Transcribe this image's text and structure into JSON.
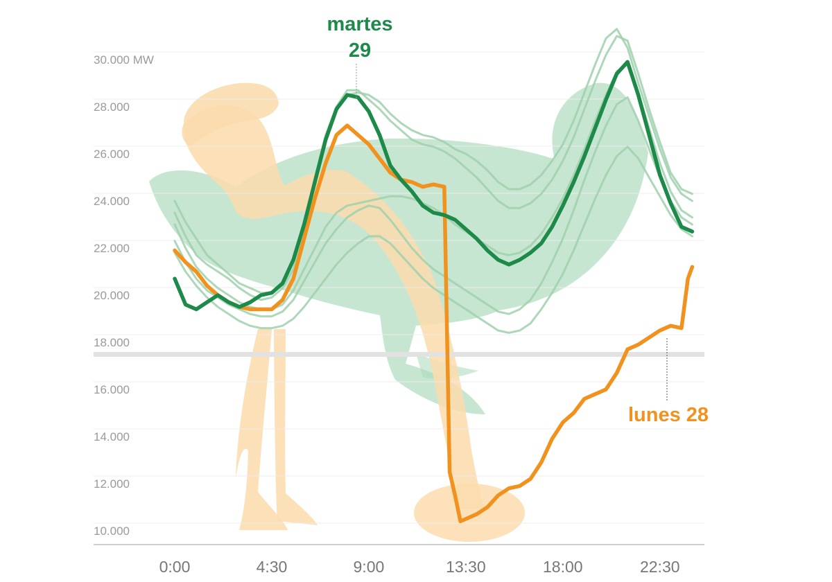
{
  "chart_data": {
    "type": "line",
    "title": "",
    "xlabel": "",
    "ylabel": "",
    "y_unit": "MW",
    "xlim": [
      0,
      24.5
    ],
    "ylim": [
      9500,
      30500
    ],
    "y_ticks": [
      10000,
      12000,
      14000,
      16000,
      18000,
      20000,
      22000,
      24000,
      26000,
      28000,
      30000
    ],
    "y_tick_labels": [
      "10.000",
      "12.000",
      "14.000",
      "16.000",
      "18.000",
      "20.000",
      "22.000",
      "24.000",
      "26.000",
      "28.000",
      "30.000 MW"
    ],
    "x_ticks": [
      0,
      4.5,
      9,
      13.5,
      18,
      22.5
    ],
    "x_tick_labels": [
      "0:00",
      "4:30",
      "9:00",
      "13:30",
      "18:00",
      "22:30"
    ],
    "grid": "horizontal",
    "colors": {
      "martes": "#1e8a4a",
      "lunes": "#f0921d",
      "other_days": "#9fd0ad",
      "ostrich_green": "#a9d8b9",
      "ostrich_orange": "#fbdcae",
      "axis_break": "#e2e2e2"
    },
    "annotations": {
      "martes_line1": "martes",
      "martes_line2": "29",
      "lunes": "lunes 28"
    },
    "series": [
      {
        "key": "martes",
        "x": [
          0,
          0.5,
          1,
          1.5,
          2,
          2.5,
          3,
          3.5,
          4,
          4.5,
          5,
          5.5,
          6,
          6.5,
          7,
          7.5,
          8,
          8.5,
          9,
          9.5,
          10,
          10.5,
          11,
          11.5,
          12,
          12.5,
          13,
          13.5,
          14,
          14.5,
          15,
          15.5,
          16,
          16.5,
          17,
          17.5,
          18,
          18.5,
          19,
          19.5,
          20,
          20.5,
          21,
          21.5,
          22,
          22.5,
          23,
          23.5,
          24
        ],
        "values": [
          20700,
          19600,
          19400,
          19700,
          20000,
          19700,
          19500,
          19700,
          20000,
          20100,
          20500,
          21500,
          23000,
          24800,
          26600,
          27900,
          28500,
          28400,
          27800,
          26800,
          25500,
          24900,
          24400,
          23800,
          23500,
          23400,
          23200,
          22800,
          22400,
          21900,
          21500,
          21300,
          21500,
          21800,
          22200,
          22900,
          23800,
          24800,
          25900,
          27100,
          28300,
          29400,
          29900,
          28500,
          26800,
          25100,
          23900,
          22900,
          22700
        ]
      },
      {
        "key": "lunes",
        "x": [
          0,
          0.5,
          1,
          1.5,
          2,
          2.5,
          3,
          3.5,
          4,
          4.5,
          5,
          5.5,
          6,
          6.5,
          7,
          7.5,
          8,
          8.5,
          9,
          9.5,
          10,
          10.5,
          11,
          11.5,
          12,
          12.5,
          12.75,
          13,
          13.25,
          13.5,
          14,
          14.5,
          15,
          15.5,
          16,
          16.5,
          17,
          17.5,
          18,
          18.5,
          19,
          19.5,
          20,
          20.5,
          21,
          21.5,
          22,
          22.5,
          23,
          23.5,
          23.8,
          24
        ],
        "values": [
          21900,
          21400,
          21000,
          20400,
          20000,
          19700,
          19500,
          19400,
          19400,
          19400,
          19800,
          20700,
          22400,
          24100,
          25600,
          26800,
          27200,
          26800,
          26400,
          25800,
          25200,
          24900,
          24800,
          24600,
          24700,
          24600,
          12500,
          11500,
          10400,
          10500,
          10700,
          11000,
          11500,
          11800,
          11900,
          12200,
          12900,
          13900,
          14600,
          15000,
          15600,
          15800,
          16000,
          16700,
          17700,
          17900,
          18200,
          18500,
          18700,
          18600,
          20700,
          21200
        ]
      },
      {
        "key": "other_day_1",
        "x": [
          0,
          0.5,
          1,
          1.5,
          2,
          2.5,
          3,
          3.5,
          4,
          4.5,
          5,
          5.5,
          6,
          6.5,
          7,
          7.5,
          8,
          8.5,
          9,
          9.5,
          10,
          10.5,
          11,
          11.5,
          12,
          12.5,
          13,
          13.5,
          14,
          14.5,
          15,
          15.5,
          16,
          16.5,
          17,
          17.5,
          18,
          18.5,
          19,
          19.5,
          20,
          20.5,
          21,
          21.5,
          22,
          22.5,
          23,
          23.5,
          24
        ],
        "values": [
          23500,
          22500,
          21700,
          21300,
          21000,
          20700,
          20300,
          20000,
          19800,
          19900,
          20300,
          21100,
          22700,
          24700,
          26600,
          27900,
          28500,
          28600,
          28500,
          28200,
          27700,
          27300,
          27000,
          26800,
          26700,
          26500,
          26200,
          26000,
          25700,
          25300,
          24800,
          24500,
          24500,
          24700,
          25100,
          25700,
          26400,
          27400,
          28600,
          29800,
          30900,
          31300,
          30500,
          29000,
          27600,
          26200,
          25000,
          24300,
          24000
        ]
      },
      {
        "key": "other_day_2",
        "x": [
          0,
          0.5,
          1,
          1.5,
          2,
          2.5,
          3,
          3.5,
          4,
          4.5,
          5,
          5.5,
          6,
          6.5,
          7,
          7.5,
          8,
          8.5,
          9,
          9.5,
          10,
          10.5,
          11,
          11.5,
          12,
          12.5,
          13,
          13.5,
          14,
          14.5,
          15,
          15.5,
          16,
          16.5,
          17,
          17.5,
          18,
          18.5,
          19,
          19.5,
          20,
          20.5,
          21,
          21.5,
          22,
          22.5,
          23,
          23.5,
          24
        ],
        "values": [
          24000,
          23100,
          22400,
          21700,
          21300,
          20900,
          20500,
          20300,
          20100,
          20100,
          20500,
          21400,
          23000,
          25000,
          26800,
          28000,
          28700,
          28700,
          28300,
          27900,
          27400,
          27000,
          26600,
          26400,
          26300,
          26100,
          25800,
          25400,
          25000,
          24500,
          24000,
          23700,
          23700,
          23900,
          24300,
          24900,
          25700,
          26700,
          27900,
          29100,
          30200,
          31000,
          30800,
          29400,
          27900,
          26500,
          25200,
          24500,
          24300
        ]
      },
      {
        "key": "other_day_3",
        "x": [
          0,
          0.5,
          1,
          1.5,
          2,
          2.5,
          3,
          3.5,
          4,
          4.5,
          5,
          5.5,
          6,
          6.5,
          7,
          7.5,
          8,
          8.5,
          9,
          9.5,
          10,
          10.5,
          11,
          11.5,
          12,
          12.5,
          13,
          13.5,
          14,
          14.5,
          15,
          15.5,
          16,
          16.5,
          17,
          17.5,
          18,
          18.5,
          19,
          19.5,
          20,
          20.5,
          21,
          21.5,
          22,
          22.5,
          23,
          23.5,
          24
        ],
        "values": [
          23000,
          22000,
          21200,
          20700,
          20300,
          20000,
          19700,
          19500,
          19400,
          19400,
          19600,
          20200,
          21100,
          22000,
          22900,
          23500,
          23800,
          23900,
          24000,
          24100,
          24200,
          24200,
          24100,
          23900,
          23700,
          23400,
          23000,
          22700,
          22400,
          22100,
          21800,
          21700,
          21800,
          22100,
          22600,
          23300,
          24100,
          25100,
          26200,
          27400,
          28500,
          29500,
          29800,
          28600,
          27100,
          25600,
          24400,
          23600,
          23300
        ]
      },
      {
        "key": "other_day_4",
        "x": [
          0,
          0.5,
          1,
          1.5,
          2,
          2.5,
          3,
          3.5,
          4,
          4.5,
          5,
          5.5,
          6,
          6.5,
          7,
          7.5,
          8,
          8.5,
          9,
          9.5,
          10,
          10.5,
          11,
          11.5,
          12,
          12.5,
          13,
          13.5,
          14,
          14.5,
          15,
          15.5,
          16,
          16.5,
          17,
          17.5,
          18,
          18.5,
          19,
          19.5,
          20,
          20.5,
          21,
          21.5,
          22,
          22.5,
          23,
          23.5,
          24
        ],
        "values": [
          22300,
          21400,
          20700,
          20200,
          19900,
          19600,
          19400,
          19200,
          19100,
          19100,
          19300,
          19800,
          20600,
          21400,
          22200,
          22800,
          23300,
          23600,
          23800,
          23700,
          23200,
          22600,
          22000,
          21500,
          21100,
          20800,
          20500,
          20200,
          19900,
          19600,
          19300,
          19200,
          19400,
          19800,
          20500,
          21400,
          22400,
          23600,
          24900,
          26100,
          27200,
          28100,
          28400,
          27400,
          26200,
          25000,
          24000,
          23300,
          23000
        ]
      },
      {
        "key": "other_day_5",
        "x": [
          0,
          0.5,
          1,
          1.5,
          2,
          2.5,
          3,
          3.5,
          4,
          4.5,
          5,
          5.5,
          6,
          6.5,
          7,
          7.5,
          8,
          8.5,
          9,
          9.5,
          10,
          10.5,
          11,
          11.5,
          12,
          12.5,
          13,
          13.5,
          14,
          14.5,
          15,
          15.5,
          16,
          16.5,
          17,
          17.5,
          18,
          18.5,
          19,
          19.5,
          20,
          20.5,
          21,
          21.5,
          22,
          22.5,
          23,
          23.5,
          24
        ],
        "values": [
          21800,
          21000,
          20400,
          19900,
          19500,
          19200,
          18900,
          18700,
          18600,
          18600,
          18700,
          19000,
          19500,
          20100,
          20700,
          21300,
          21800,
          22200,
          22500,
          22500,
          22200,
          21700,
          21200,
          20700,
          20300,
          20000,
          19700,
          19400,
          19100,
          18800,
          18500,
          18400,
          18500,
          18800,
          19400,
          20100,
          20900,
          21900,
          23000,
          24100,
          25100,
          25900,
          26300,
          25800,
          25000,
          24200,
          23400,
          22800,
          22500
        ]
      }
    ]
  }
}
